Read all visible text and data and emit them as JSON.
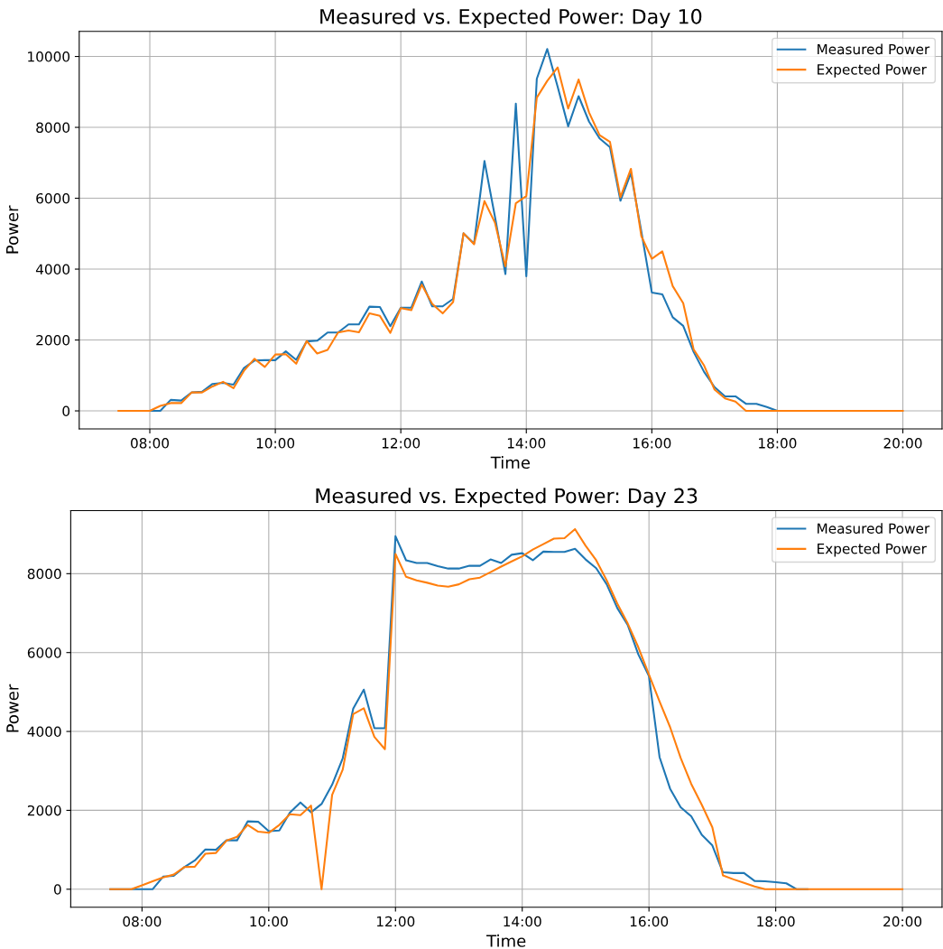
{
  "chart_data": [
    {
      "type": "line",
      "title": "Measured vs. Expected Power: Day 10",
      "xlabel": "Time",
      "ylabel": "Power",
      "x": [
        7.5,
        7.667,
        7.833,
        8,
        8.167,
        8.333,
        8.5,
        8.667,
        8.833,
        9,
        9.167,
        9.333,
        9.5,
        9.667,
        9.833,
        10,
        10.167,
        10.333,
        10.5,
        10.667,
        10.833,
        11,
        11.167,
        11.333,
        11.5,
        11.667,
        11.833,
        12,
        12.167,
        12.333,
        12.5,
        12.667,
        12.833,
        13,
        13.167,
        13.333,
        13.5,
        13.667,
        13.833,
        14,
        14.167,
        14.333,
        14.5,
        14.667,
        14.833,
        15,
        15.167,
        15.333,
        15.5,
        15.667,
        15.833,
        16,
        16.167,
        16.333,
        16.5,
        16.667,
        16.833,
        17,
        17.167,
        17.333,
        17.5,
        17.667,
        17.833,
        18,
        18.167,
        18.333,
        18.5,
        18.667,
        18.833,
        19,
        19.167,
        19.333,
        19.5,
        19.667,
        19.833,
        20
      ],
      "series": [
        {
          "name": "Measured Power",
          "color": "#1f77b4",
          "values": [
            null,
            null,
            0,
            0,
            0,
            310,
            290,
            520,
            540,
            760,
            790,
            740,
            1210,
            1420,
            1430,
            1430,
            1680,
            1440,
            1960,
            1980,
            2210,
            2210,
            2440,
            2440,
            2940,
            2930,
            2390,
            2910,
            2910,
            3650,
            2950,
            2950,
            3160,
            5010,
            4720,
            7050,
            5480,
            3860,
            8670,
            3800,
            9370,
            10210,
            9140,
            8030,
            8880,
            8160,
            7690,
            7440,
            5930,
            6710,
            5060,
            3340,
            3290,
            2640,
            2400,
            1660,
            1100,
            670,
            410,
            410,
            200,
            200,
            110,
            0,
            0,
            null,
            null,
            null,
            null,
            null,
            null,
            null,
            null,
            null,
            null,
            null
          ]
        },
        {
          "name": "Expected Power",
          "color": "#ff7f0e",
          "values": [
            0,
            0,
            0,
            0,
            140,
            220,
            220,
            520,
            520,
            690,
            820,
            640,
            1130,
            1470,
            1240,
            1590,
            1600,
            1330,
            1970,
            1620,
            1720,
            2210,
            2270,
            2220,
            2750,
            2680,
            2200,
            2900,
            2840,
            3560,
            3020,
            2750,
            3070,
            5010,
            4700,
            5920,
            5310,
            4080,
            5860,
            6060,
            8840,
            9310,
            9690,
            8530,
            9350,
            8420,
            7780,
            7590,
            6030,
            6830,
            4930,
            4290,
            4500,
            3520,
            3040,
            1730,
            1280,
            600,
            350,
            260,
            0,
            0,
            0,
            0,
            0,
            0,
            0,
            0,
            0,
            0,
            0,
            0,
            0,
            0,
            0,
            0
          ]
        }
      ],
      "xlim": [
        6.875,
        20.625
      ],
      "xticks": [
        {
          "value": 8,
          "label": "08:00"
        },
        {
          "value": 10,
          "label": "10:00"
        },
        {
          "value": 12,
          "label": "12:00"
        },
        {
          "value": 14,
          "label": "14:00"
        },
        {
          "value": 16,
          "label": "16:00"
        },
        {
          "value": 18,
          "label": "18:00"
        },
        {
          "value": 20,
          "label": "20:00"
        }
      ],
      "ylim": [
        -510,
        10710
      ],
      "yticks": [
        0,
        2000,
        4000,
        6000,
        8000,
        10000
      ],
      "grid": true,
      "legend": "top right"
    },
    {
      "type": "line",
      "title": "Measured vs. Expected Power: Day 23",
      "xlabel": "Time",
      "ylabel": "Power",
      "x": [
        7.5,
        7.667,
        7.833,
        8,
        8.167,
        8.333,
        8.5,
        8.667,
        8.833,
        9,
        9.167,
        9.333,
        9.5,
        9.667,
        9.833,
        10,
        10.167,
        10.333,
        10.5,
        10.667,
        10.833,
        11,
        11.167,
        11.333,
        11.5,
        11.667,
        11.833,
        12,
        12.167,
        12.333,
        12.5,
        12.667,
        12.833,
        13,
        13.167,
        13.333,
        13.5,
        13.667,
        13.833,
        14,
        14.167,
        14.333,
        14.5,
        14.667,
        14.833,
        15,
        15.167,
        15.333,
        15.5,
        15.667,
        15.833,
        16,
        16.167,
        16.333,
        16.5,
        16.667,
        16.833,
        17,
        17.167,
        17.333,
        17.5,
        17.667,
        17.833,
        18,
        18.167,
        18.333,
        18.5,
        18.667,
        18.833,
        19,
        19.167,
        19.333,
        19.5,
        19.667,
        19.833,
        20
      ],
      "series": [
        {
          "name": "Measured Power",
          "color": "#1f77b4",
          "values": [
            0,
            0,
            0,
            0,
            0,
            320,
            340,
            560,
            730,
            1010,
            1000,
            1240,
            1240,
            1720,
            1710,
            1470,
            1490,
            1940,
            2200,
            1950,
            2160,
            2650,
            3320,
            4580,
            5060,
            4080,
            4080,
            8950,
            8340,
            8270,
            8270,
            8190,
            8130,
            8130,
            8200,
            8200,
            8360,
            8270,
            8480,
            8520,
            8340,
            8560,
            8550,
            8550,
            8630,
            8360,
            8140,
            7730,
            7130,
            6690,
            5950,
            5400,
            3350,
            2550,
            2080,
            1850,
            1380,
            1110,
            430,
            410,
            410,
            210,
            200,
            180,
            150,
            0,
            0,
            null,
            null,
            null,
            null,
            null,
            null,
            null,
            null,
            null
          ]
        },
        {
          "name": "Expected Power",
          "color": "#ff7f0e",
          "values": [
            0,
            0,
            0,
            100,
            200,
            300,
            370,
            560,
            570,
            900,
            920,
            1230,
            1330,
            1630,
            1460,
            1430,
            1630,
            1900,
            1880,
            2120,
            0,
            2390,
            3030,
            4440,
            4590,
            3860,
            3550,
            8500,
            7920,
            7830,
            7770,
            7700,
            7670,
            7730,
            7860,
            7900,
            8040,
            8180,
            8310,
            8440,
            8610,
            8750,
            8890,
            8900,
            9130,
            8710,
            8340,
            7830,
            7240,
            6730,
            6130,
            5440,
            4760,
            4110,
            3330,
            2670,
            2140,
            1570,
            350,
            250,
            160,
            70,
            0,
            0,
            0,
            0,
            0,
            0,
            0,
            0,
            0,
            0,
            0,
            0,
            0,
            0
          ]
        }
      ],
      "xlim": [
        6.875,
        20.625
      ],
      "xticks": [
        {
          "value": 8,
          "label": "08:00"
        },
        {
          "value": 10,
          "label": "10:00"
        },
        {
          "value": 12,
          "label": "12:00"
        },
        {
          "value": 14,
          "label": "14:00"
        },
        {
          "value": 16,
          "label": "16:00"
        },
        {
          "value": 18,
          "label": "18:00"
        },
        {
          "value": 20,
          "label": "20:00"
        }
      ],
      "ylim": [
        -457,
        9600
      ],
      "yticks": [
        0,
        2000,
        4000,
        6000,
        8000
      ],
      "grid": true,
      "legend": "top right"
    }
  ]
}
